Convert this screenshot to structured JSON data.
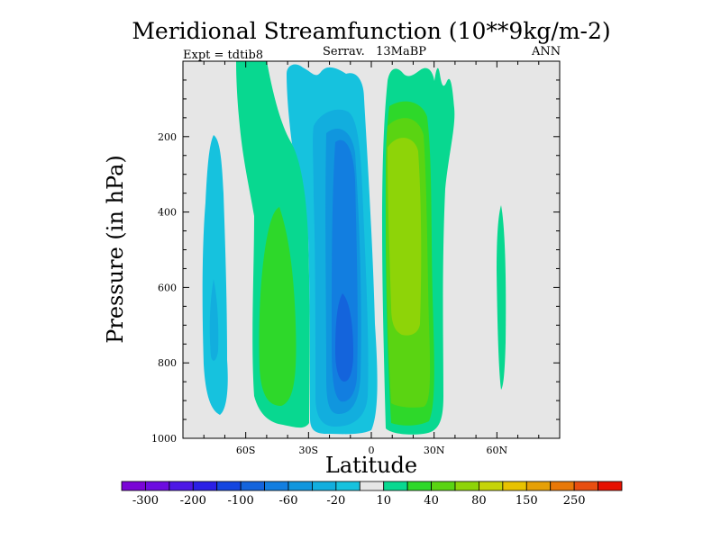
{
  "chart_data": {
    "type": "contour",
    "title": "Meridional Streamfunction (10**9kg/m-2)",
    "subtitle_left": "Expt = tdtib8",
    "subtitle_center": "Serrav.   13MaBP",
    "subtitle_right": "ANN",
    "xlabel": "Latitude",
    "ylabel": "Pressure (in hPa)",
    "xlim": [
      -90,
      90
    ],
    "ylim": [
      1000,
      0
    ],
    "x_ticks": [
      {
        "value": -60,
        "label": "60S"
      },
      {
        "value": -30,
        "label": "30S"
      },
      {
        "value": 0,
        "label": "0"
      },
      {
        "value": 30,
        "label": "30N"
      },
      {
        "value": 60,
        "label": "60N"
      }
    ],
    "y_ticks": [
      {
        "value": 200,
        "label": "200"
      },
      {
        "value": 400,
        "label": "400"
      },
      {
        "value": 600,
        "label": "600"
      },
      {
        "value": 800,
        "label": "800"
      },
      {
        "value": 1000,
        "label": "1000"
      }
    ],
    "background_color": "#e6e6e6",
    "levels": [
      -300,
      -250,
      -200,
      -150,
      -100,
      -80,
      -60,
      -40,
      -20,
      -10,
      10,
      20,
      40,
      60,
      80,
      100,
      150,
      200,
      250,
      300
    ],
    "colorbar": {
      "colors": [
        "#7a05d6",
        "#6d0de0",
        "#4d18e6",
        "#2b20e6",
        "#1446e0",
        "#1464dc",
        "#127ee0",
        "#1096de",
        "#12aede",
        "#16c2de",
        "#e6e6e6",
        "#08d890",
        "#2ed82a",
        "#5ad412",
        "#8ed408",
        "#c6d408",
        "#e8c200",
        "#e6a006",
        "#e87808",
        "#e84e10",
        "#e61000"
      ],
      "labels": [
        {
          "after_index": 0,
          "text": "-300"
        },
        {
          "after_index": 2,
          "text": "-200"
        },
        {
          "after_index": 4,
          "text": "-100"
        },
        {
          "after_index": 6,
          "text": "-60"
        },
        {
          "after_index": 8,
          "text": "-20"
        },
        {
          "after_index": 10,
          "text": "10"
        },
        {
          "after_index": 12,
          "text": "40"
        },
        {
          "after_index": 14,
          "text": "80"
        },
        {
          "after_index": 16,
          "text": "150"
        },
        {
          "after_index": 18,
          "text": "250"
        }
      ]
    },
    "cells": [
      {
        "name": "southern-outer-negative",
        "sign": "negative",
        "lat_range": [
          -80,
          -68
        ],
        "p_range": [
          200,
          1000
        ],
        "peak_level": -20
      },
      {
        "name": "southern-ferrel-positive",
        "sign": "positive",
        "lat_range": [
          -62,
          -30
        ],
        "p_range": [
          20,
          1000
        ],
        "peak_level": 20
      },
      {
        "name": "southern-hadley-negative",
        "sign": "negative",
        "lat_range": [
          -32,
          -5
        ],
        "p_range": [
          20,
          1000
        ],
        "peak_level": -100
      },
      {
        "name": "northern-hadley-positive",
        "sign": "positive",
        "lat_range": [
          5,
          40
        ],
        "p_range": [
          20,
          1000
        ],
        "peak_level": 80
      },
      {
        "name": "northern-isolated-positive",
        "sign": "positive",
        "lat_range": [
          58,
          64
        ],
        "p_range": [
          360,
          880
        ],
        "peak_level": 10
      }
    ]
  }
}
